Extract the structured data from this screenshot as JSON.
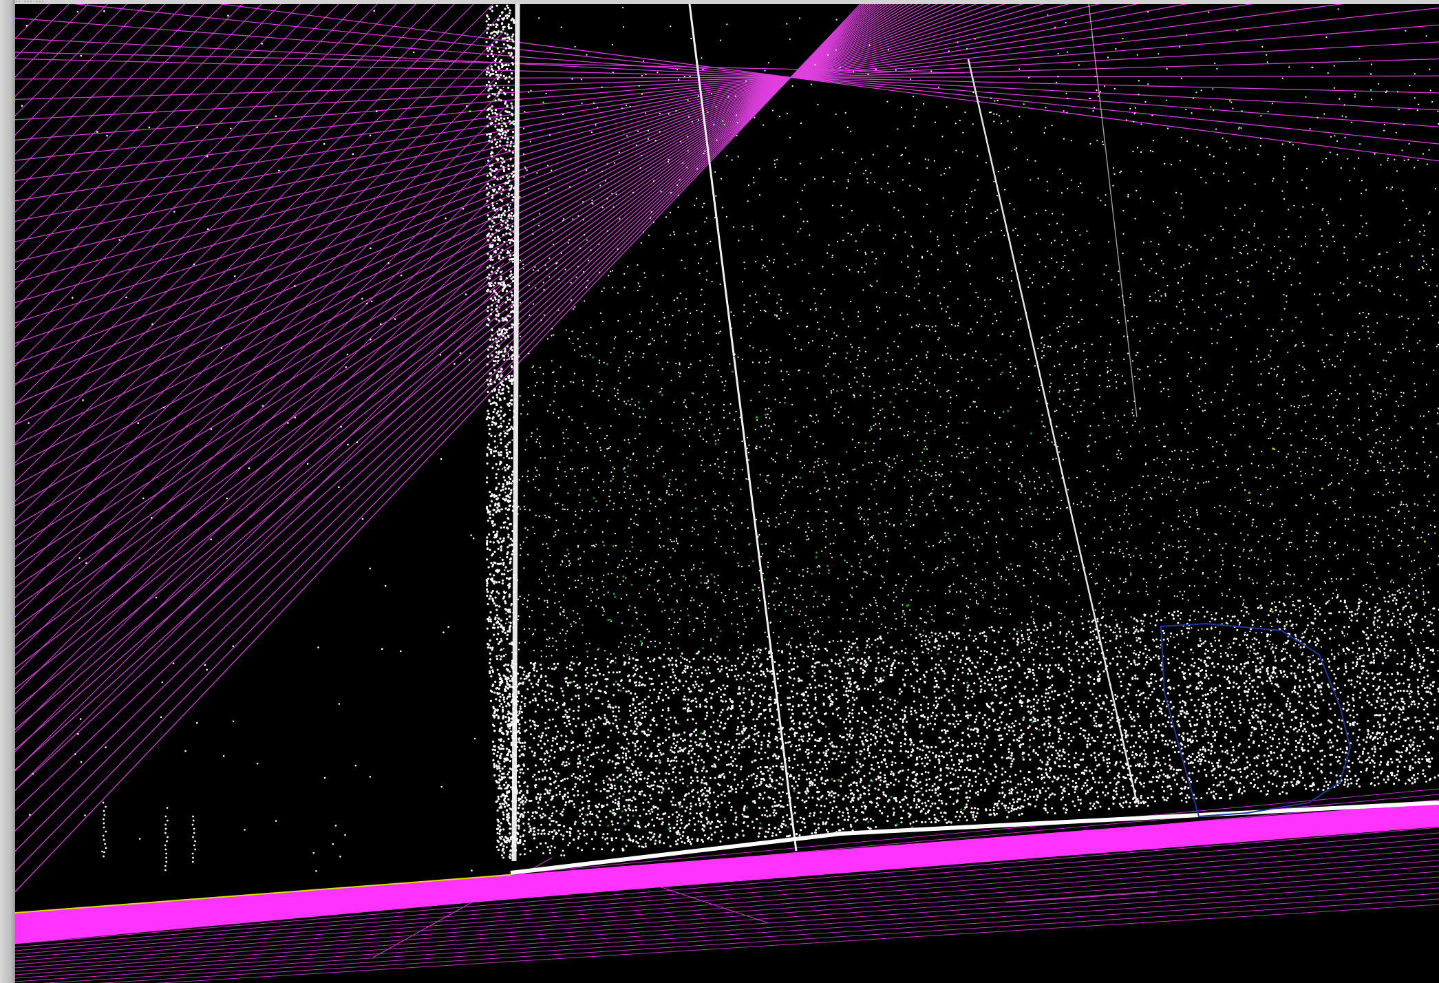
{
  "window": {
    "title_text": "… … … …"
  },
  "viewport": {
    "description_name": "point-cloud-3d-view",
    "background_color": "#000000"
  },
  "colors": {
    "scan_lines": "#e040e0",
    "points": "#ffffff",
    "ground_points": "#ff33ff",
    "sparse_points_green": "#1fae1f",
    "sparse_points_yellow": "#e0c21a",
    "selection_outline": "#1e3a9c"
  },
  "layers": [
    {
      "name": "scan-lines",
      "color": "#e040e0"
    },
    {
      "name": "point-cloud",
      "color": "#ffffff"
    },
    {
      "name": "ground-plane",
      "color": "#ff33ff"
    },
    {
      "name": "selection-region",
      "color": "#1e3a9c"
    }
  ]
}
